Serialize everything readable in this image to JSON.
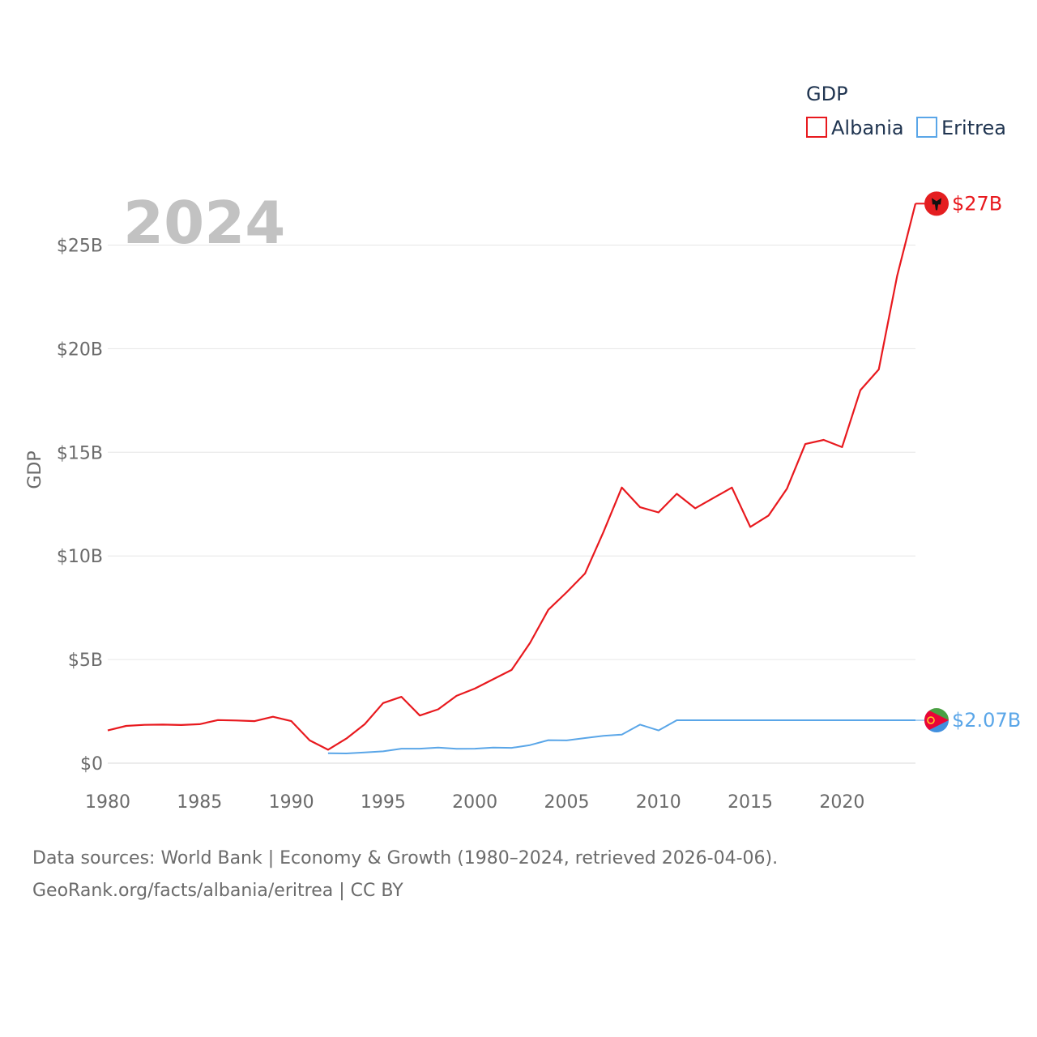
{
  "chart_data": {
    "type": "line",
    "ylabel": "GDP",
    "xlabel": "",
    "xlim": [
      1980,
      2024
    ],
    "ylim": [
      0,
      27
    ],
    "x_ticks": [
      "1980",
      "1985",
      "1990",
      "1995",
      "2000",
      "2005",
      "2010",
      "2015",
      "2020"
    ],
    "y_ticks": [
      "$0",
      "$5B",
      "$10B",
      "$15B",
      "$20B",
      "$25B"
    ],
    "year_label": "2024",
    "legend": {
      "title": "GDP",
      "placement": "top-right"
    },
    "series": [
      {
        "name": "Albania",
        "color": "#e8191e",
        "end_label": "$27B",
        "flag_icon": "albania-flag-icon",
        "x": [
          1980,
          1981,
          1982,
          1983,
          1984,
          1985,
          1986,
          1987,
          1988,
          1989,
          1990,
          1991,
          1992,
          1993,
          1994,
          1995,
          1996,
          1997,
          1998,
          1999,
          2000,
          2001,
          2002,
          2003,
          2004,
          2005,
          2006,
          2007,
          2008,
          2009,
          2010,
          2011,
          2012,
          2013,
          2014,
          2015,
          2016,
          2017,
          2018,
          2019,
          2020,
          2021,
          2022,
          2023,
          2024
        ],
        "values": [
          1.58,
          1.8,
          1.85,
          1.86,
          1.84,
          1.88,
          2.08,
          2.06,
          2.03,
          2.24,
          2.03,
          1.1,
          0.65,
          1.19,
          1.88,
          2.9,
          3.2,
          2.3,
          2.6,
          3.25,
          3.6,
          4.05,
          4.5,
          5.8,
          7.4,
          8.25,
          9.15,
          11.15,
          13.3,
          12.35,
          12.1,
          13.0,
          12.3,
          12.8,
          13.3,
          11.4,
          11.95,
          13.25,
          15.4,
          15.6,
          15.25,
          18.0,
          19.0,
          23.5,
          27.0
        ]
      },
      {
        "name": "Eritrea",
        "color": "#5aa6e8",
        "end_label": "$2.07B",
        "flag_icon": "eritrea-flag-icon",
        "x": [
          1992,
          1993,
          1994,
          1995,
          1996,
          1997,
          1998,
          1999,
          2000,
          2001,
          2002,
          2003,
          2004,
          2005,
          2006,
          2007,
          2008,
          2009,
          2010,
          2011,
          2024
        ],
        "values": [
          0.48,
          0.47,
          0.52,
          0.57,
          0.7,
          0.7,
          0.75,
          0.69,
          0.7,
          0.75,
          0.74,
          0.87,
          1.11,
          1.1,
          1.21,
          1.32,
          1.38,
          1.86,
          1.58,
          2.07,
          2.07
        ]
      }
    ]
  },
  "footer": {
    "line1": "Data sources: World Bank | Economy & Growth (1980–2024, retrieved 2026-04-06).",
    "line2": "GeoRank.org/facts/albania/eritrea | CC BY"
  }
}
